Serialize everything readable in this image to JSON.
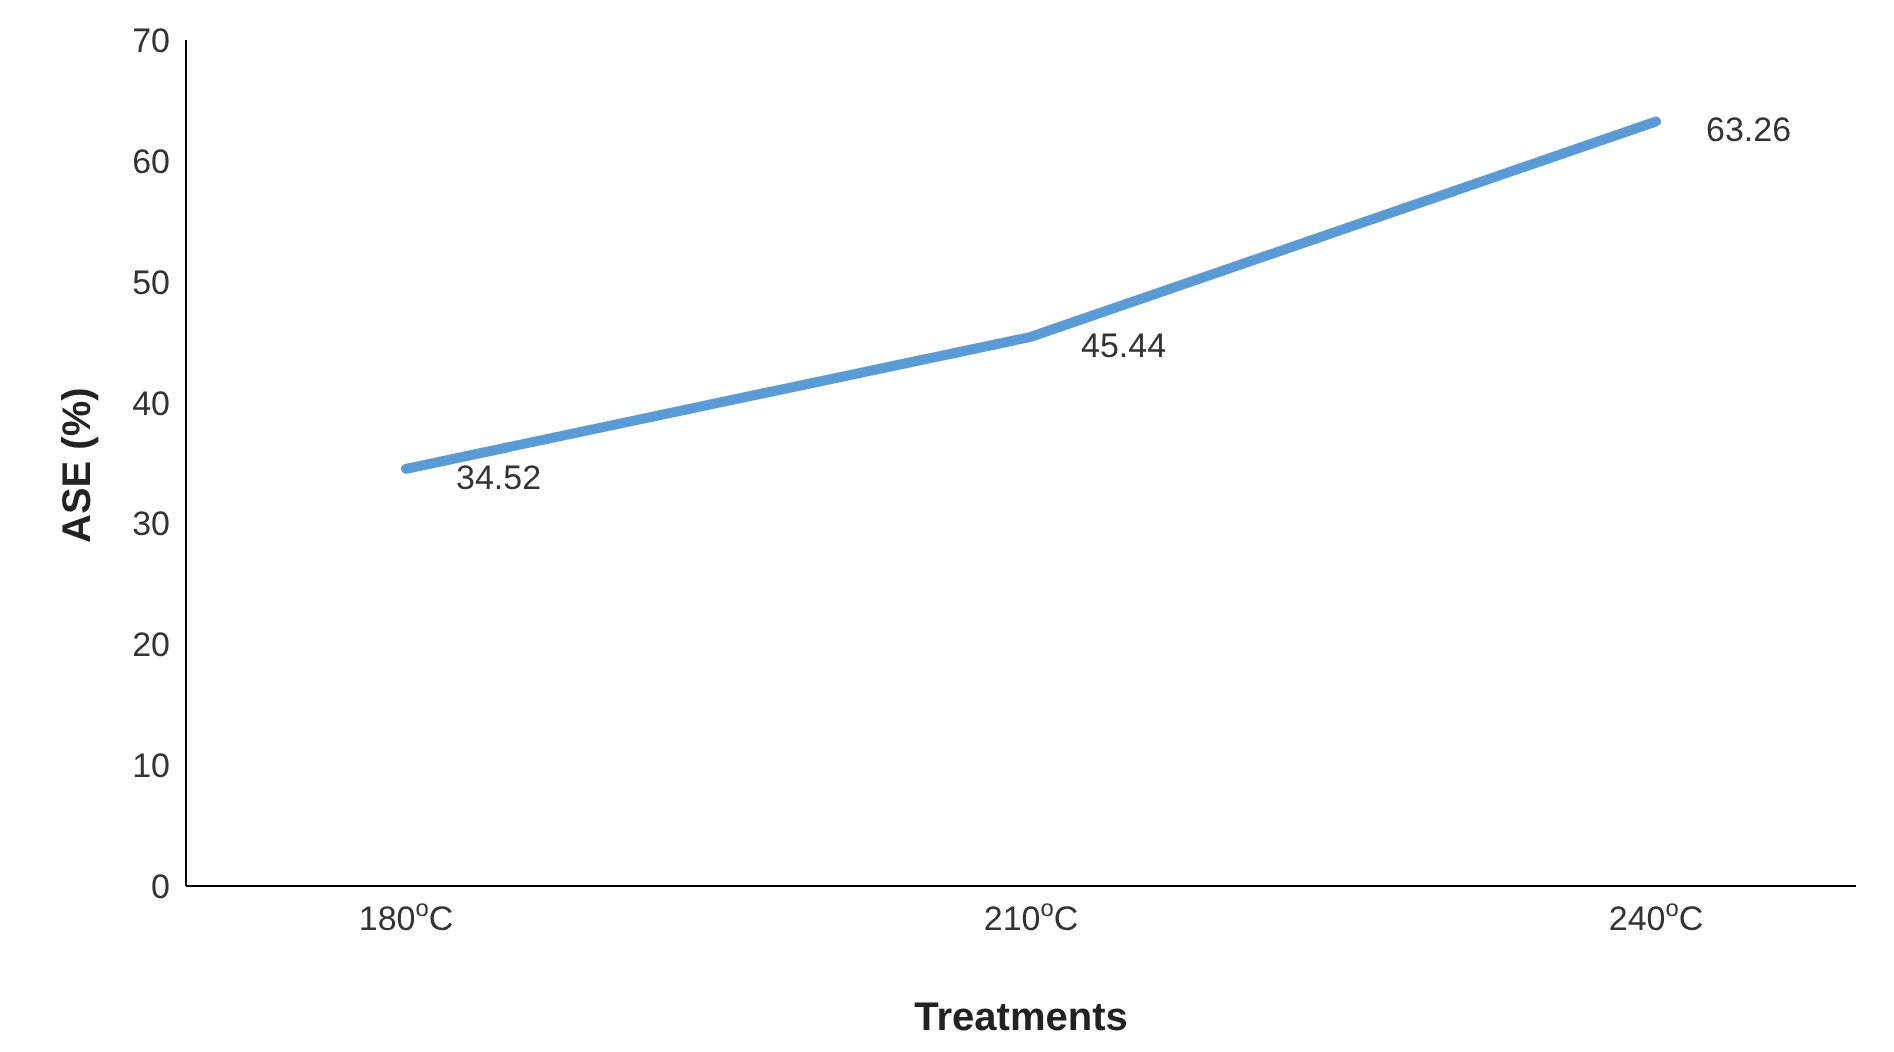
{
  "chart_data": {
    "type": "line",
    "xlabel": "Treatments",
    "ylabel": "ASE (%)",
    "categories": [
      "180$^{o}$C",
      "210$^{o}$C",
      "240$^{o}$C"
    ],
    "series": [
      {
        "color": "#5b9bd5",
        "values": [
          34.52,
          45.44,
          63.26
        ]
      }
    ],
    "ylim": [
      0,
      70
    ],
    "yticks": [
      0,
      10,
      20,
      30,
      40,
      50,
      60,
      70
    ],
    "data_labels": true,
    "grid": false,
    "legend": false,
    "marker": "none"
  }
}
